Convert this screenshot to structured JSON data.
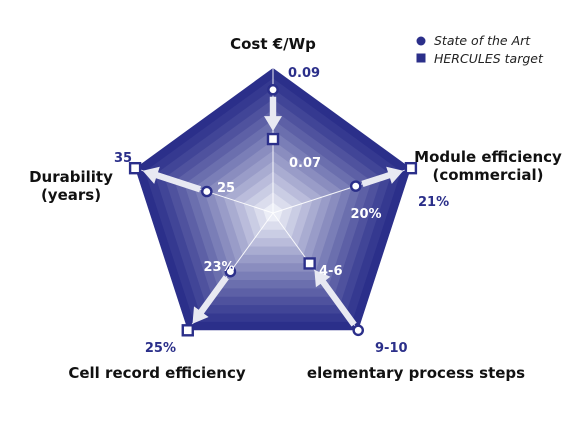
{
  "chart_data": {
    "type": "radar",
    "axes": [
      {
        "label": "Cost €/Wp",
        "sota_label": "0.09",
        "target_label": "0.07",
        "sota_level": 0.85,
        "target_level": 0.51
      },
      {
        "label": "Module efficiency\n(commercial)",
        "sota_label": "20%",
        "target_label": "21%",
        "sota_level": 0.6,
        "target_level": 1.0
      },
      {
        "label": "elementary process steps",
        "sota_label": "9-10",
        "target_label": "4-6",
        "sota_level": 1.0,
        "target_level": 0.43
      },
      {
        "label": "Cell record efficiency",
        "sota_label": "23%",
        "target_label": "25%",
        "sota_level": 0.5,
        "target_level": 1.0
      },
      {
        "label": "Durability\n(years)",
        "sota_label": "25",
        "target_label": "35",
        "sota_level": 0.48,
        "target_level": 1.0
      }
    ],
    "series": [
      {
        "name": "State of the Art",
        "marker": "circle"
      },
      {
        "name": "HERCULES target",
        "marker": "square"
      }
    ],
    "colors": {
      "dark": "#2b2f8a",
      "light": "#eceef7",
      "marker_fill": "#ffffff",
      "arrow": "#e8e9f2"
    },
    "legend_position": "top-right"
  }
}
